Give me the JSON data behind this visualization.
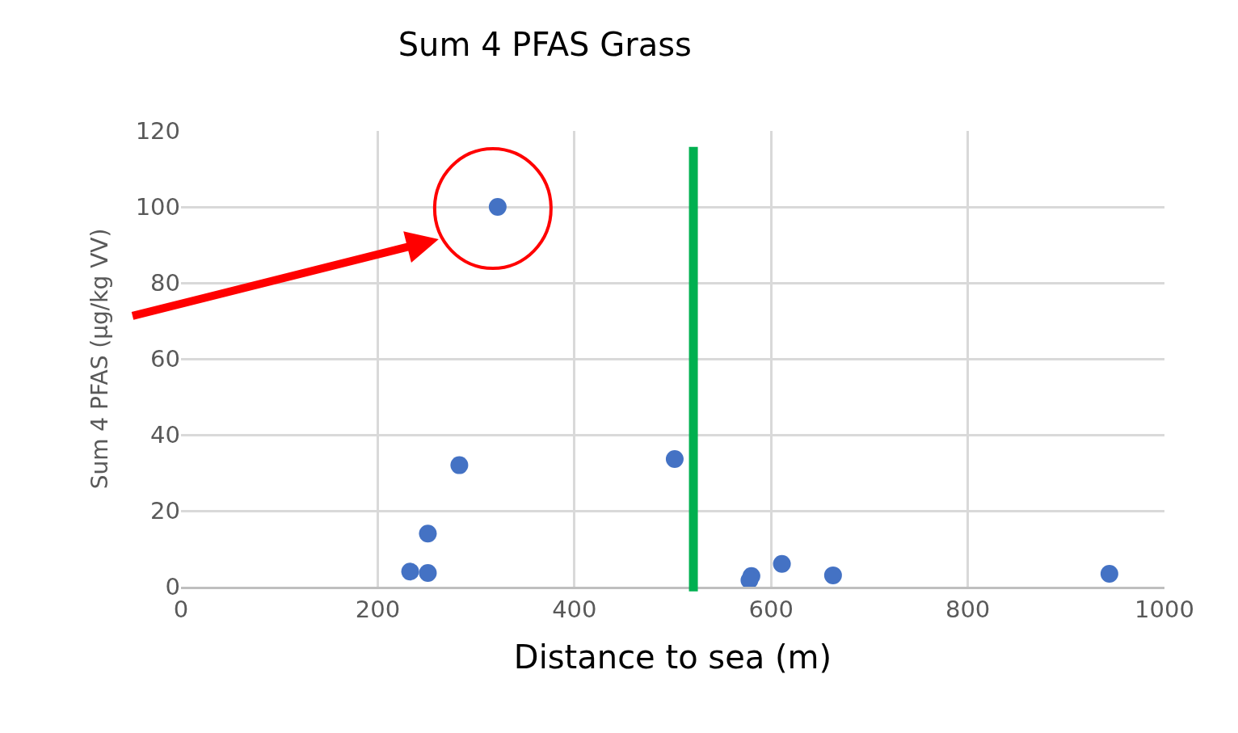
{
  "chart_data": {
    "type": "scatter",
    "title": "Sum 4 PFAS Grass",
    "xlabel": "Distance to sea (m)",
    "ylabel": "Sum 4 PFAS (µg/kg VV)",
    "series": [
      {
        "color": "#4472c4",
        "x": [
          233,
          251,
          251,
          283,
          322,
          502,
          580,
          578,
          611,
          663,
          944
        ],
        "values": [
          4,
          3.6,
          14,
          32,
          100,
          33.6,
          2.8,
          1.7,
          6,
          3,
          3.4
        ]
      }
    ],
    "xlim": [
      0,
      1000
    ],
    "xticks": [
      0,
      200,
      400,
      600,
      800,
      1000
    ],
    "ylim": [
      0,
      120
    ],
    "yticks": [
      0,
      20,
      40,
      60,
      80,
      100,
      120
    ],
    "grid": true,
    "marker": "circle",
    "ref_lines": [
      {
        "axis": "x",
        "value": 521,
        "color": "#00b050"
      }
    ]
  }
}
